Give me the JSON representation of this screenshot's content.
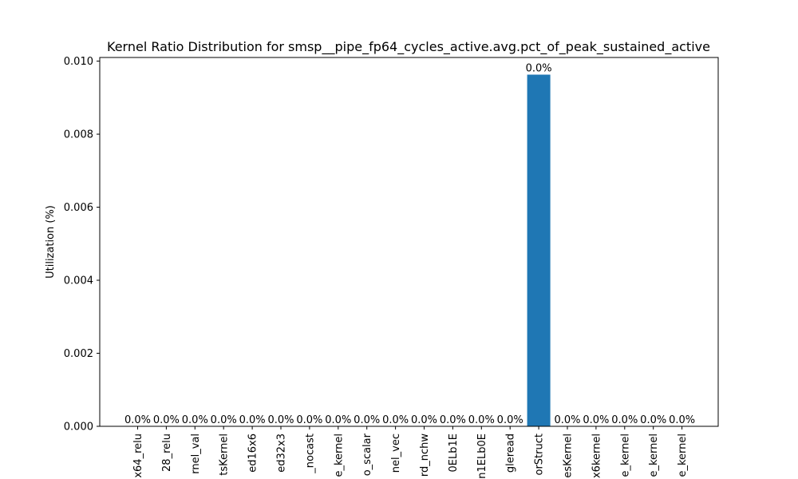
{
  "chart_data": {
    "type": "bar",
    "title": "Kernel Ratio Distribution for smsp__pipe_fp64_cycles_active.avg.pct_of_peak_sustained_active",
    "xlabel": "",
    "ylabel": "Utilization (%)",
    "ylim": [
      0,
      0.0101
    ],
    "yticks": [
      0.0,
      0.002,
      0.004,
      0.006,
      0.008,
      0.01
    ],
    "ytick_labels": [
      "0.000",
      "0.002",
      "0.004",
      "0.006",
      "0.008",
      "0.010"
    ],
    "categories": [
      "x64_relu",
      "28_relu",
      "rnel_val",
      "tsKernel",
      "ed16x6",
      "ed32x3",
      "_nocast",
      "e_kernel",
      "o_scalar",
      "nel_vec",
      "rd_nchw",
      "0ELb1E",
      "n1ELb0E",
      "gleread",
      "orStruct",
      "esKernel",
      "x6kernel",
      "e_kernel",
      "e_kernel",
      "e_kernel"
    ],
    "values": [
      0,
      0,
      0,
      0,
      0,
      0,
      0,
      0,
      0,
      0,
      0,
      0,
      0,
      0,
      0.00963,
      0,
      0,
      0,
      0,
      0
    ],
    "data_labels": [
      "0.0%",
      "0.0%",
      "0.0%",
      "0.0%",
      "0.0%",
      "0.0%",
      "0.0%",
      "0.0%",
      "0.0%",
      "0.0%",
      "0.0%",
      "0.0%",
      "0.0%",
      "0.0%",
      "0.0%",
      "0.0%",
      "0.0%",
      "0.0%",
      "0.0%",
      "0.0%"
    ],
    "bar_color": "#1f77b4",
    "grid": false,
    "legend": "none"
  }
}
